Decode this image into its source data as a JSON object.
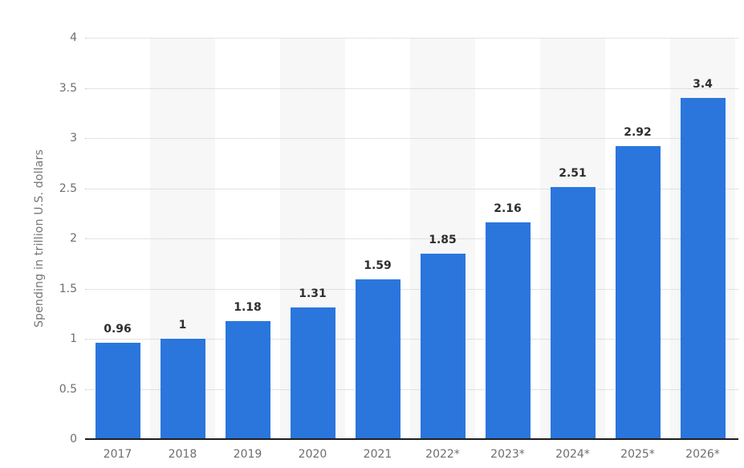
{
  "chart_data": {
    "type": "bar",
    "title": "",
    "xlabel": "",
    "ylabel": "Spending in trillion U.S. dollars",
    "categories": [
      "2017",
      "2018",
      "2019",
      "2020",
      "2021",
      "2022*",
      "2023*",
      "2024*",
      "2025*",
      "2026*"
    ],
    "values": [
      0.96,
      1,
      1.18,
      1.31,
      1.59,
      1.85,
      2.16,
      2.51,
      2.92,
      3.4
    ],
    "value_labels": [
      "0.96",
      "1",
      "1.18",
      "1.31",
      "1.59",
      "1.85",
      "2.16",
      "2.51",
      "2.92",
      "3.4"
    ],
    "ylim": [
      0,
      4
    ],
    "yticks": [
      "0",
      "0.5",
      "1",
      "1.5",
      "2",
      "2.5",
      "3",
      "3.5",
      "4"
    ],
    "grid": "horizontal-dotted",
    "legend": "none",
    "colors": {
      "bar": "#2a76dd",
      "value_label": "#2f2f2f",
      "tick_label": "#6e6e6e",
      "axis_title": "#757575",
      "gridline": "#c9c9c9",
      "column_stripe": "#f7f7f8",
      "baseline": "#1d1d1d",
      "background": "#ffffff"
    },
    "striped_columns": [
      1,
      3,
      5,
      7,
      9
    ]
  }
}
